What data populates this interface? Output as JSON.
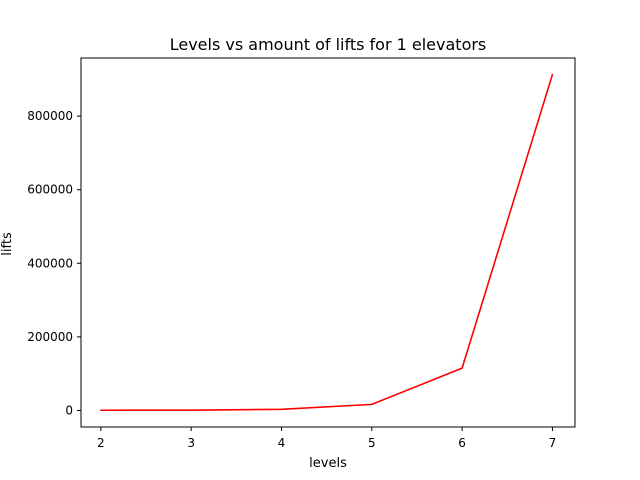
{
  "chart_data": {
    "type": "line",
    "title": "Levels vs amount of lifts for 1 elevators",
    "xlabel": "levels",
    "ylabel": "lifts",
    "x": [
      2,
      3,
      4,
      5,
      6,
      7
    ],
    "series": [
      {
        "values": [
          500,
          800,
          3000,
          16500,
          115000,
          913000
        ],
        "color": "#ff0000"
      }
    ],
    "xlim": [
      1.78,
      7.25
    ],
    "ylim": [
      -45000,
      958000
    ],
    "xticks": [
      2,
      3,
      4,
      5,
      6,
      7
    ],
    "yticks": [
      0,
      200000,
      400000,
      600000,
      800000
    ],
    "xtick_labels": [
      "2",
      "3",
      "4",
      "5",
      "6",
      "7"
    ],
    "ytick_labels": [
      "0",
      "200000",
      "400000",
      "600000",
      "800000"
    ],
    "grid": false,
    "legend": false
  }
}
